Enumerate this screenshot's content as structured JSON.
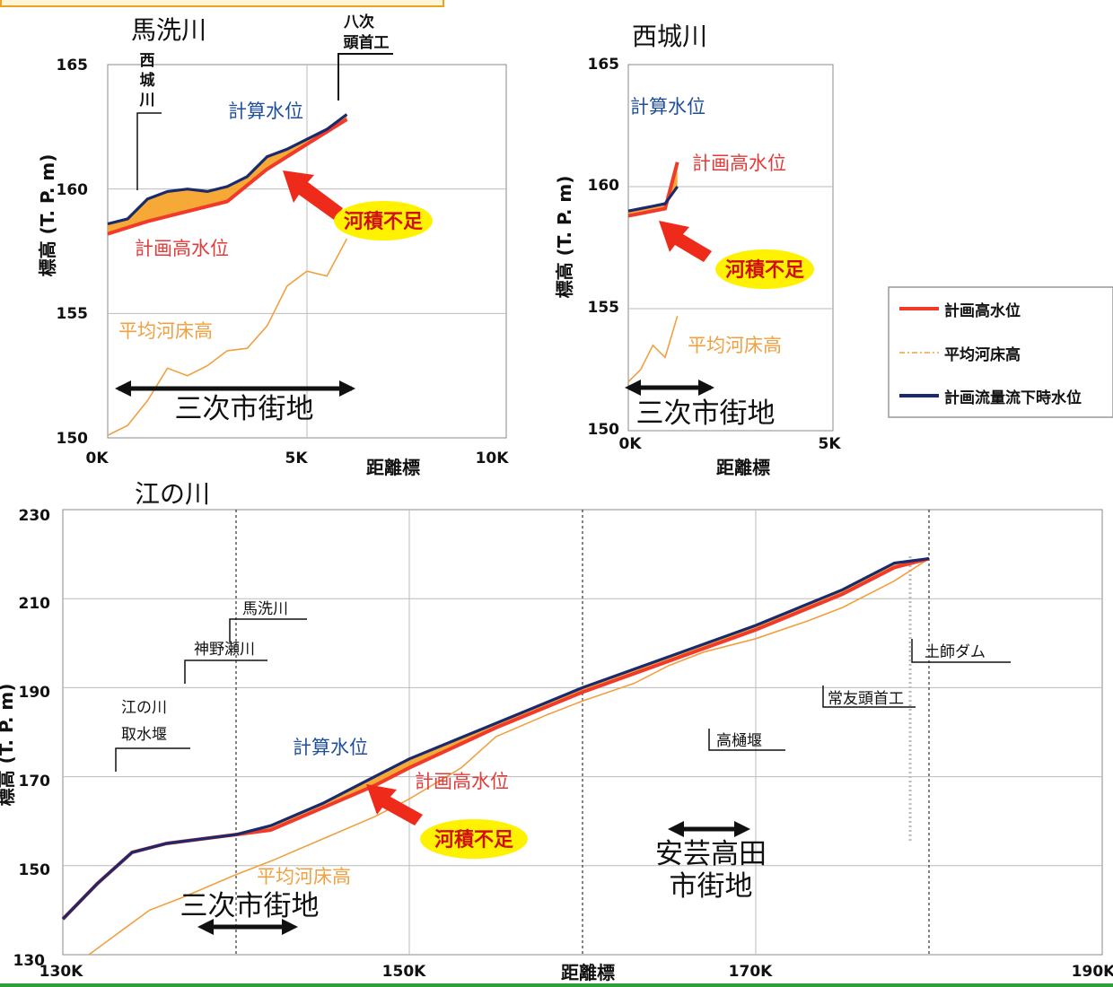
{
  "chart_data": [
    {
      "type": "line",
      "title": "馬洗川",
      "xlabel": "距離標",
      "ylabel": "標高 (T. P. m)",
      "xlim": [
        0,
        10
      ],
      "ylim": [
        150,
        165
      ],
      "x_ticks": [
        "0K",
        "5K",
        "10K"
      ],
      "y_ticks": [
        "150",
        "155",
        "160",
        "165"
      ],
      "series": [
        {
          "name": "計算水位",
          "x": [
            0,
            0.5,
            1,
            1.5,
            2,
            2.5,
            3,
            3.5,
            4,
            4.5,
            5,
            5.5,
            6
          ],
          "values": [
            158.6,
            158.8,
            159.6,
            159.9,
            160.0,
            159.9,
            160.1,
            160.5,
            161.3,
            161.6,
            162.0,
            162.4,
            163.0
          ]
        },
        {
          "name": "計画高水位",
          "x": [
            0,
            1,
            2,
            3,
            4,
            5,
            6
          ],
          "values": [
            158.2,
            158.7,
            159.1,
            159.5,
            160.8,
            161.8,
            162.8
          ]
        },
        {
          "name": "平均河床高",
          "x": [
            0,
            0.5,
            1,
            1.5,
            2,
            2.5,
            3,
            3.5,
            4,
            4.5,
            5,
            5.5,
            6
          ],
          "values": [
            150.1,
            150.5,
            151.5,
            152.8,
            152.5,
            152.9,
            153.5,
            153.6,
            154.5,
            156.1,
            156.7,
            156.5,
            158.0
          ]
        }
      ],
      "annotations": {
        "calc": "計算水位",
        "plan": "計画高水位",
        "bed": "平均河床高",
        "shortage": "河積不足",
        "district": "三次市街地",
        "junction": [
          "西",
          "城",
          "川"
        ],
        "weir": [
          "八次",
          "頭首工"
        ]
      }
    },
    {
      "type": "line",
      "title": "西城川",
      "xlabel": "距離標",
      "ylabel": "標高 (T. P. m)",
      "xlim": [
        0,
        5
      ],
      "ylim": [
        150,
        165
      ],
      "x_ticks": [
        "0K",
        "5K"
      ],
      "y_ticks": [
        "150",
        "155",
        "160",
        "165"
      ],
      "series": [
        {
          "name": "計算水位",
          "x": [
            0,
            0.3,
            0.6,
            0.9,
            1.2
          ],
          "values": [
            159.0,
            159.1,
            159.2,
            159.3,
            160.0
          ]
        },
        {
          "name": "計画高水位",
          "x": [
            0,
            0.3,
            0.6,
            0.9,
            1.2
          ],
          "values": [
            158.8,
            158.9,
            159.0,
            159.1,
            161.0
          ]
        },
        {
          "name": "平均河床高",
          "x": [
            0,
            0.3,
            0.6,
            0.9,
            1.2
          ],
          "values": [
            152.0,
            152.5,
            153.5,
            153.0,
            154.7
          ]
        }
      ],
      "annotations": {
        "calc": "計算水位",
        "plan": "計画高水位",
        "bed": "平均河床高",
        "shortage": "河積不足",
        "district": "三次市街地"
      }
    },
    {
      "type": "line",
      "title": "江の川",
      "xlabel": "距離標",
      "ylabel": "標高 (T. P. m)",
      "xlim": [
        130,
        190
      ],
      "ylim": [
        130,
        230
      ],
      "x_ticks": [
        "130K",
        "150K",
        "170K",
        "190K"
      ],
      "y_ticks": [
        "130",
        "150",
        "170",
        "190",
        "210",
        "230"
      ],
      "series": [
        {
          "name": "計算水位",
          "x": [
            130,
            132,
            134,
            136,
            140,
            142,
            145,
            148,
            150,
            155,
            160,
            165,
            170,
            175,
            178,
            180
          ],
          "values": [
            138,
            146,
            153,
            155,
            157,
            159,
            164,
            170,
            174,
            182,
            190,
            197,
            204,
            212,
            218,
            219
          ]
        },
        {
          "name": "計画高水位",
          "x": [
            130,
            132,
            134,
            136,
            140,
            142,
            145,
            148,
            150,
            155,
            160,
            165,
            170,
            175,
            178,
            180
          ],
          "values": [
            138,
            146,
            153,
            155,
            157,
            158,
            163,
            168,
            172,
            181,
            189,
            196,
            203,
            211,
            217,
            219
          ]
        },
        {
          "name": "平均河床高",
          "x": [
            131.5,
            135,
            137,
            140,
            142,
            145,
            148,
            150,
            153,
            155,
            158,
            160,
            163,
            165,
            167,
            170,
            173,
            175,
            178,
            180
          ],
          "values": [
            130,
            140,
            143,
            148,
            151,
            156,
            161,
            165,
            172,
            179,
            184,
            187,
            191,
            195,
            198,
            201,
            205,
            208,
            214,
            219
          ]
        }
      ],
      "annotations": {
        "calc": "計算水位",
        "plan": "計画高水位",
        "bed": "平均河床高",
        "shortage": "河積不足",
        "district_miyoshi": "三次市街地",
        "district_akitakata_1": "安芸高田",
        "district_akitakata_2": "市街地",
        "structures": {
          "basen": "馬洗川",
          "kannose": "神野瀬川",
          "intake_1": "江の川",
          "intake_2": "取水堰",
          "takahi": "高樋堰",
          "tsunetomo": "常友頭首工",
          "haji": "土師ダム"
        }
      }
    }
  ],
  "legend": {
    "plan": "計画高水位",
    "bed": "平均河床高",
    "calc": "計画流量流下時水位"
  },
  "colors": {
    "calc": "#1a2a6c",
    "plan": "#f03a2a",
    "bed": "#f0a040",
    "shortage_fill": "#f5a020",
    "badge": "#fff200",
    "arrow": "#ee2a1a",
    "grid": "#bbbbbb"
  }
}
